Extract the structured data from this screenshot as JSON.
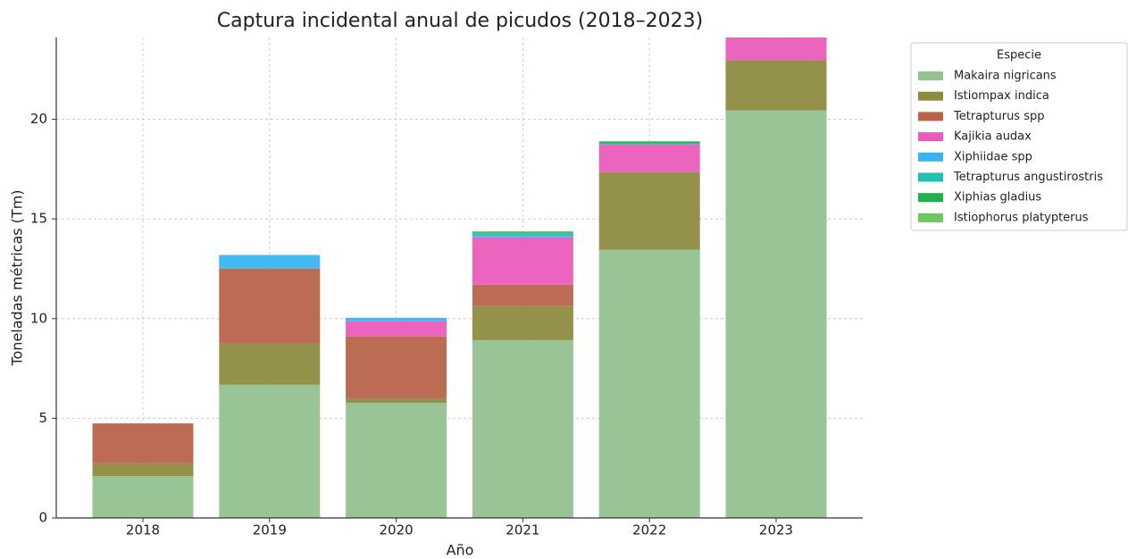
{
  "chart_data": {
    "type": "stacked_bar",
    "title": "Captura incidental anual de picudos (2018–2023)",
    "xlabel": "Año",
    "ylabel": "Toneladas métricas (Tm)",
    "legend_title": "Especie",
    "legend_position": "outside right",
    "grid": true,
    "categories": [
      "2018",
      "2019",
      "2020",
      "2021",
      "2022",
      "2023"
    ],
    "ylim": [
      0,
      24.1
    ],
    "yticks": [
      0,
      5,
      10,
      15,
      20
    ],
    "series": [
      {
        "name": "Makaira nigricans",
        "color": "#93c190",
        "values": [
          2.1,
          6.68,
          5.78,
          8.92,
          13.45,
          20.45
        ]
      },
      {
        "name": "Istiompax indica",
        "color": "#8d8b40",
        "values": [
          0.64,
          2.06,
          0.22,
          1.71,
          3.9,
          2.51
        ]
      },
      {
        "name": "Tetrapturus spp",
        "color": "#b9644b",
        "values": [
          2.0,
          3.77,
          3.1,
          1.07,
          0,
          0
        ]
      },
      {
        "name": "Kajikia audax",
        "color": "#ea5cb9",
        "values": [
          0,
          0,
          0.77,
          2.38,
          1.39,
          1.3
        ]
      },
      {
        "name": "Xiphiidae spp",
        "color": "#38b5f0",
        "values": [
          0,
          0.68,
          0.17,
          0.1,
          0,
          0
        ]
      },
      {
        "name": "Tetrapturus angustirostris",
        "color": "#20c0b2",
        "values": [
          0,
          0,
          0,
          0.1,
          0.05,
          0
        ]
      },
      {
        "name": "Xiphias gladius",
        "color": "#22b04f",
        "values": [
          0,
          0,
          0,
          0.05,
          0.1,
          0
        ]
      },
      {
        "name": "Istiophorus platypterus",
        "color": "#6ec862",
        "values": [
          0,
          0,
          0,
          0.05,
          0,
          0
        ]
      }
    ]
  }
}
